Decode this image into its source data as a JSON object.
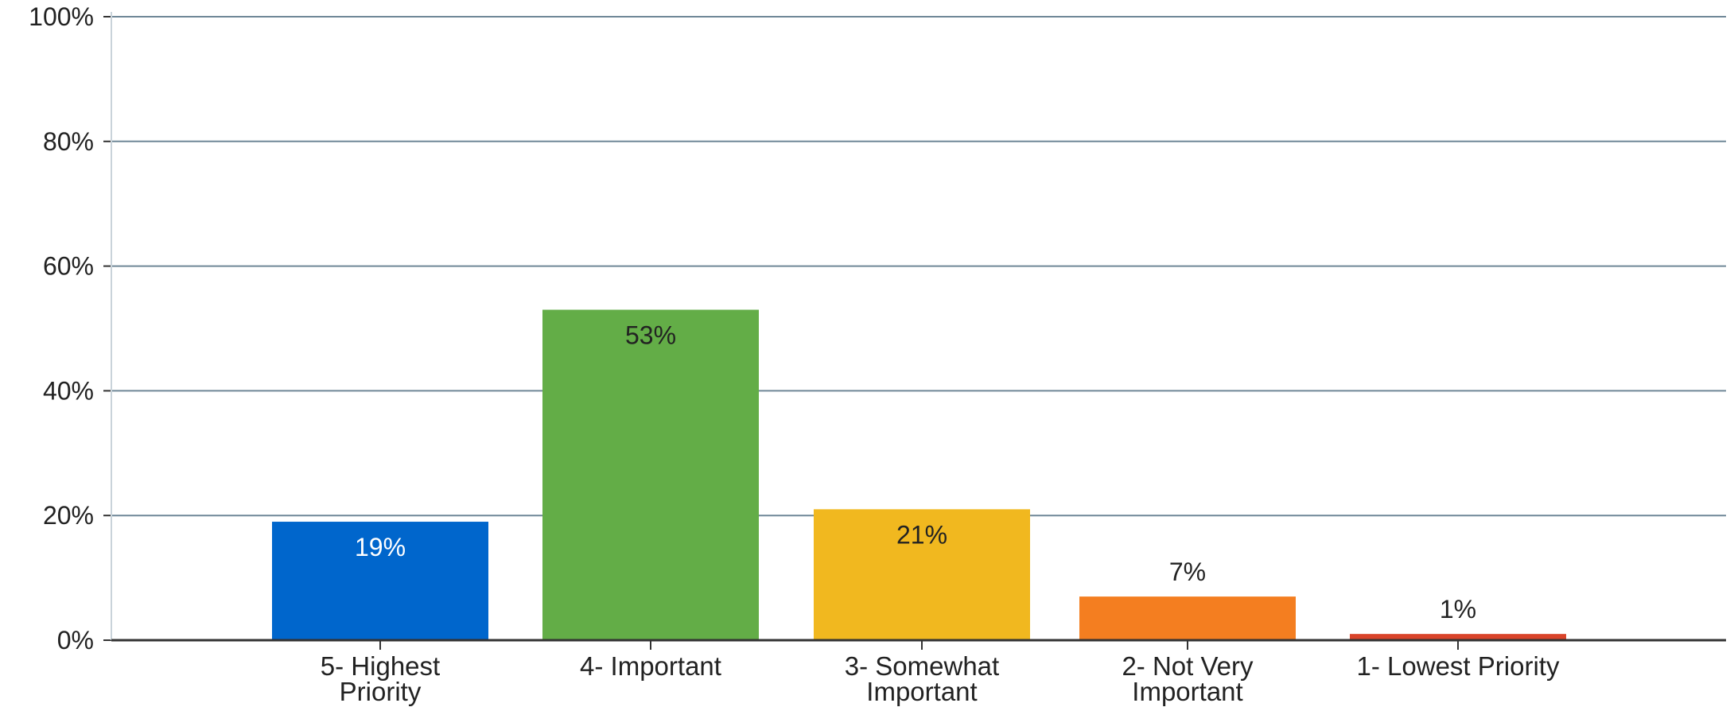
{
  "chart_data": {
    "type": "bar",
    "title": "",
    "xlabel": "",
    "ylabel": "",
    "ylim": [
      0,
      100
    ],
    "y_ticks": [
      {
        "value": 0,
        "label": "0%"
      },
      {
        "value": 20,
        "label": "20%"
      },
      {
        "value": 40,
        "label": "40%"
      },
      {
        "value": 60,
        "label": "60%"
      },
      {
        "value": 80,
        "label": "80%"
      },
      {
        "value": 100,
        "label": "100%"
      }
    ],
    "grid": true,
    "legend": "none",
    "categories": [
      [
        "5- Highest",
        "Priority"
      ],
      [
        "4- Important"
      ],
      [
        "3- Somewhat",
        "Important"
      ],
      [
        "2- Not Very",
        "Important"
      ],
      [
        "1- Lowest Priority"
      ]
    ],
    "values": [
      19,
      53,
      21,
      7,
      1
    ],
    "data_labels": [
      "19%",
      "53%",
      "21%",
      "7%",
      "1%"
    ],
    "colors": [
      "#0066cc",
      "#63ad47",
      "#f1b81f",
      "#f47e20",
      "#d9442a"
    ],
    "label_colors": [
      "#ffffff",
      "#222222",
      "#222222",
      "#222222",
      "#222222"
    ],
    "gridline_color": "#6f8797",
    "axis_color": "#333333"
  }
}
